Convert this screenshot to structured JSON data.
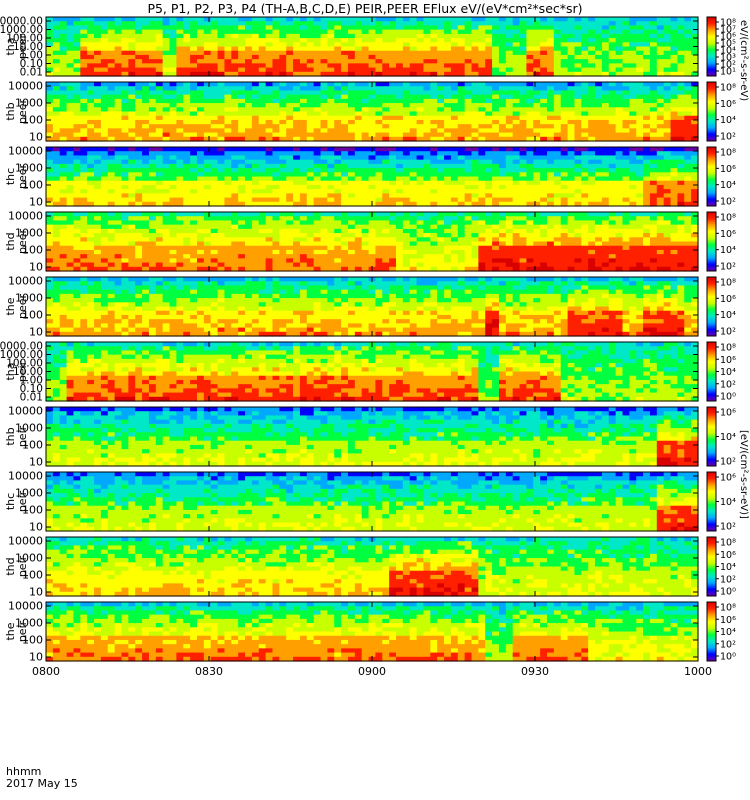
{
  "figure": {
    "title": "P5, P1, P2, P3, P4 (TH-A,B,C,D,E) PEIR,PEER EFlux eV/(eV*cm²*sec*sr)",
    "time_label": "hhmm",
    "date_label": "2017 May 15",
    "colorbar_title_top": "eV/(cm²-s-sr-eV)",
    "colorbar_title_bottom": "[eV/(cm²-s-sr-eV)]",
    "colorscale": [
      "#6a00a8",
      "#0000ff",
      "#00a8ff",
      "#00e8c8",
      "#00ff40",
      "#c8ff00",
      "#ffff00",
      "#ffa000",
      "#ff2000",
      "#d80000"
    ]
  },
  "chart_data": {
    "type": "heatmap",
    "x_axis": {
      "ticks": [
        "0800",
        "0830",
        "0900",
        "0930",
        "1000"
      ],
      "range": [
        "0800",
        "1000"
      ]
    },
    "panels": [
      {
        "id": "tha-peer",
        "probe": "tha",
        "species": "peer",
        "yticks": [
          "10000.00",
          "1000.00",
          "100.00",
          "10.00",
          "1.00",
          "0.10",
          "0.01"
        ],
        "colorbar_ticks": [
          "10⁸",
          "10⁷",
          "10⁶",
          "10⁵",
          "10⁴",
          "10³",
          "10²",
          "10¹"
        ],
        "base_level": 0.85,
        "top_level": 0.3,
        "events": [
          {
            "start": "0800",
            "end": "0806",
            "level": 0.55
          },
          {
            "start": "0821",
            "end": "0824",
            "level": 0.6
          },
          {
            "start": "0922",
            "end": "0929",
            "level": 0.55
          },
          {
            "start": "0934",
            "end": "1000",
            "level": 0.55
          }
        ]
      },
      {
        "id": "thb-peer",
        "probe": "thb",
        "species": "peer",
        "yticks": [
          "10000",
          "1000",
          "100",
          "10"
        ],
        "colorbar_ticks": [
          "10⁸",
          "10⁶",
          "10⁴",
          "10²"
        ],
        "base_level": 0.75,
        "top_level": 0.25,
        "events": [
          {
            "start": "0955",
            "end": "1000",
            "level": 0.9
          }
        ]
      },
      {
        "id": "thc-peer",
        "probe": "thc",
        "species": "peer",
        "yticks": [
          "10000",
          "1000",
          "100",
          "10"
        ],
        "colorbar_ticks": [
          "10⁸",
          "10⁶",
          "10⁴",
          "10²"
        ],
        "base_level": 0.7,
        "top_level": 0.12,
        "events": [
          {
            "start": "0950",
            "end": "1000",
            "level": 0.85
          }
        ]
      },
      {
        "id": "thd-peer",
        "probe": "thd",
        "species": "peer",
        "yticks": [
          "10000",
          "1000",
          "100",
          "10"
        ],
        "colorbar_ticks": [
          "10⁸",
          "10⁶",
          "10⁴",
          "10²"
        ],
        "base_level": 0.8,
        "top_level": 0.4,
        "events": [
          {
            "start": "0905",
            "end": "0919",
            "level": 0.65
          },
          {
            "start": "0919",
            "end": "1000",
            "level": 0.9
          }
        ]
      },
      {
        "id": "the-peer",
        "probe": "the",
        "species": "peer",
        "yticks": [
          "10000",
          "1000",
          "100",
          "10"
        ],
        "colorbar_ticks": [
          "10⁸",
          "10⁶",
          "10⁴",
          "10²"
        ],
        "base_level": 0.75,
        "top_level": 0.28,
        "events": [
          {
            "start": "0921",
            "end": "0924",
            "level": 0.95
          },
          {
            "start": "0936",
            "end": "0946",
            "level": 0.9
          },
          {
            "start": "0950",
            "end": "0957",
            "level": 0.9
          }
        ]
      },
      {
        "id": "tha-peir",
        "probe": "tha",
        "species": "peir",
        "yticks": [
          "10000.00",
          "1000.00",
          "100.00",
          "10.00",
          "1.00",
          "0.10",
          "0.01"
        ],
        "colorbar_ticks": [
          "10⁸",
          "10⁶",
          "10⁴",
          "10²",
          "10⁰"
        ],
        "base_level": 0.85,
        "top_level": 0.35,
        "events": [
          {
            "start": "0800",
            "end": "0804",
            "level": 0.5
          },
          {
            "start": "0920",
            "end": "0924",
            "level": 0.5
          },
          {
            "start": "0935",
            "end": "1000",
            "level": 0.55
          }
        ]
      },
      {
        "id": "thb-peir",
        "probe": "thb",
        "species": "peir",
        "yticks": [
          "10000",
          "1000",
          "100",
          "10"
        ],
        "colorbar_ticks": [
          "10⁶",
          "10⁴",
          "10²"
        ],
        "base_level": 0.6,
        "top_level": 0.2,
        "events": [
          {
            "start": "0953",
            "end": "1000",
            "level": 0.9
          }
        ]
      },
      {
        "id": "thc-peir",
        "probe": "thc",
        "species": "peir",
        "yticks": [
          "10000",
          "1000",
          "100",
          "10"
        ],
        "colorbar_ticks": [
          "10⁶",
          "10⁴",
          "10²"
        ],
        "base_level": 0.6,
        "top_level": 0.2,
        "events": [
          {
            "start": "0953",
            "end": "1000",
            "level": 0.9
          }
        ]
      },
      {
        "id": "thd-peir",
        "probe": "thd",
        "species": "peir",
        "yticks": [
          "10000",
          "1000",
          "100",
          "10"
        ],
        "colorbar_ticks": [
          "10⁸",
          "10⁶",
          "10⁴",
          "10²",
          "10⁰"
        ],
        "base_level": 0.7,
        "top_level": 0.35,
        "events": [
          {
            "start": "0903",
            "end": "0920",
            "level": 0.9
          },
          {
            "start": "0920",
            "end": "1000",
            "level": 0.6
          }
        ]
      },
      {
        "id": "the-peir",
        "probe": "the",
        "species": "peir",
        "yticks": [
          "10000",
          "1000",
          "100",
          "10"
        ],
        "colorbar_ticks": [
          "10⁸",
          "10⁶",
          "10⁴",
          "10²",
          "10⁰"
        ],
        "base_level": 0.8,
        "top_level": 0.3,
        "events": [
          {
            "start": "0921",
            "end": "0926",
            "level": 0.55
          },
          {
            "start": "0940",
            "end": "1000",
            "level": 0.65
          }
        ]
      }
    ]
  }
}
